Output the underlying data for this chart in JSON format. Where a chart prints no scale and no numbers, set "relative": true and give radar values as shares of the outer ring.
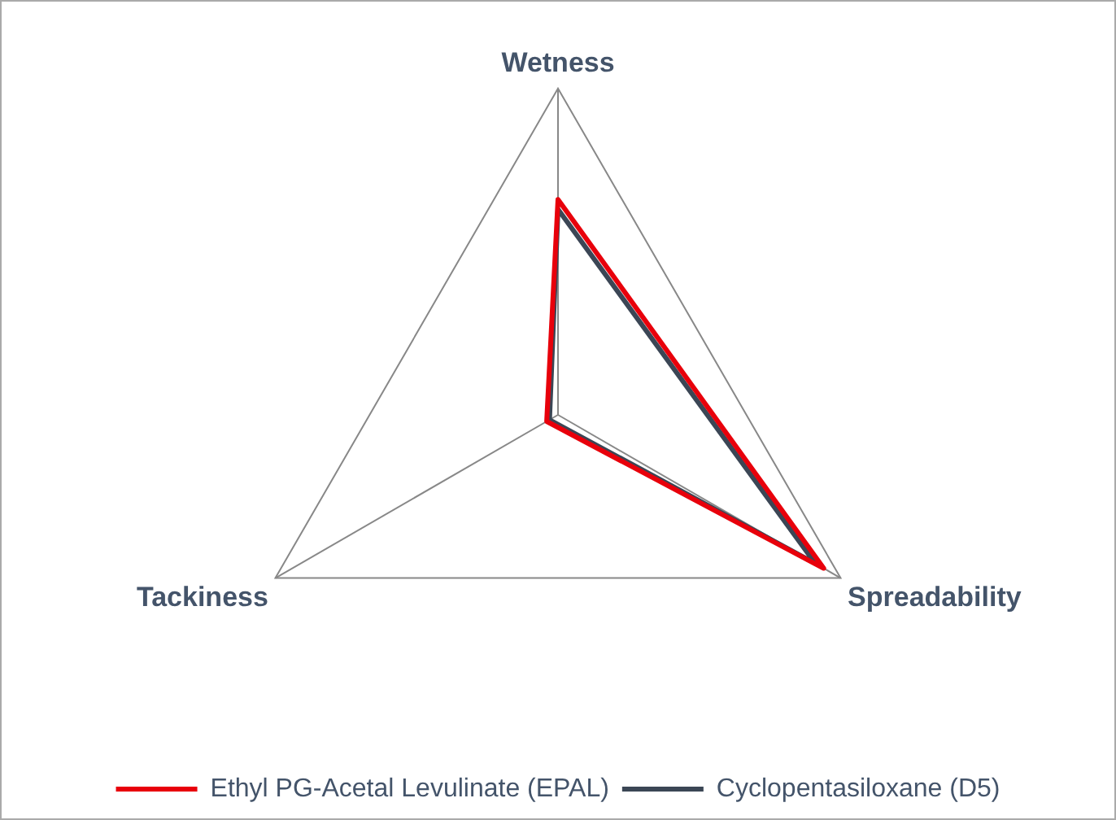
{
  "chart_data": {
    "type": "radar",
    "relative": true,
    "categories": [
      "Wetness",
      "Spreadability",
      "Tackiness"
    ],
    "legend": "bottom",
    "series": [
      {
        "name": "Ethyl PG-Acetal Levulinate (EPAL)",
        "color": "#e8000b",
        "values": [
          0.66,
          0.94,
          0.04
        ]
      },
      {
        "name": "Cyclopentasiloxane (D5)",
        "color": "#3b4655",
        "values": [
          0.63,
          0.91,
          0.03
        ]
      }
    ]
  }
}
